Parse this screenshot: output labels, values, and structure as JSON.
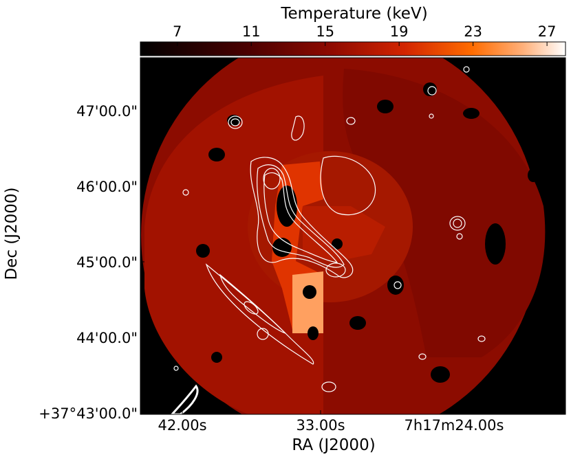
{
  "chart_data": {
    "type": "heatmap",
    "colorbar": {
      "label": "Temperature (keV)",
      "ticks": [
        7,
        11,
        15,
        19,
        23,
        27
      ],
      "range": [
        5,
        28
      ],
      "colormap": "gist_heat"
    },
    "xlabel": "RA (J2000)",
    "ylabel": "Dec (J2000)",
    "x_ticks": [
      "42.00s",
      "33.00s",
      "7h17m24.00s"
    ],
    "y_ticks": [
      "47'00.0\"",
      "46'00.0\"",
      "45'00.0\"",
      "44'00.0\"",
      "+37°43'00.0\""
    ],
    "overlay": "radio contours",
    "regions": [
      {
        "temperature_keV": 9.5
      },
      {
        "temperature_keV": 11.5
      },
      {
        "temperature_keV": 12.5
      },
      {
        "temperature_keV": 13.5
      },
      {
        "temperature_keV": 15.5
      },
      {
        "temperature_keV": 19.5
      },
      {
        "temperature_keV": 23
      }
    ]
  },
  "colors": {
    "background": "#000000",
    "contours": "#ffffff"
  }
}
